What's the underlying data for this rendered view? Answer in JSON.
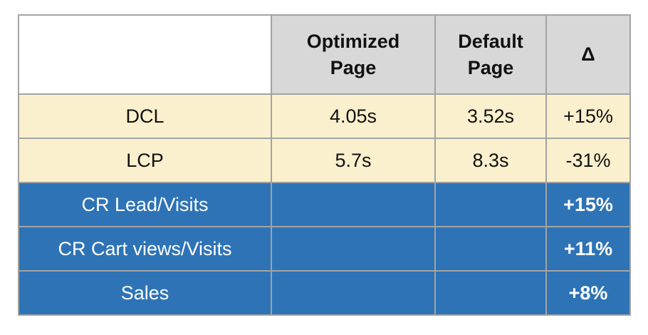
{
  "colors": {
    "header_bg": "#d8d8d8",
    "row_yellow_bg": "#faf0cd",
    "row_blue_bg": "#2e73b6",
    "border": "#a3a3a3",
    "text_dark": "#111111",
    "text_light": "#ffffff"
  },
  "table": {
    "headers": {
      "corner": "",
      "optimized": "Optimized\nPage",
      "default": "Default\nPage",
      "delta": "Δ"
    },
    "rows": [
      {
        "label": "DCL",
        "optimized": "4.05s",
        "default": "3.52s",
        "delta": "+15%"
      },
      {
        "label": "LCP",
        "optimized": "5.7s",
        "default": "8.3s",
        "delta": "-31%"
      },
      {
        "label": "CR Lead/Visits",
        "optimized": "",
        "default": "",
        "delta": "+15%"
      },
      {
        "label": "CR Cart views/Visits",
        "optimized": "",
        "default": "",
        "delta": "+11%"
      },
      {
        "label": "Sales",
        "optimized": "",
        "default": "",
        "delta": "+8%"
      }
    ]
  },
  "chart_data": {
    "type": "table",
    "columns": [
      "",
      "Optimized Page",
      "Default Page",
      "Δ"
    ],
    "rows": [
      [
        "DCL",
        "4.05s",
        "3.52s",
        "+15%"
      ],
      [
        "LCP",
        "5.7s",
        "8.3s",
        "-31%"
      ],
      [
        "CR Lead/Visits",
        "",
        "",
        "+15%"
      ],
      [
        "CR Cart views/Visits",
        "",
        "",
        "+11%"
      ],
      [
        "Sales",
        "",
        "",
        "+8%"
      ]
    ],
    "notes": "Metric rows (DCL, LCP) styled cream; conversion rows (CR Lead/Visits, CR Cart views/Visits, Sales) styled blue with bold white delta values"
  }
}
